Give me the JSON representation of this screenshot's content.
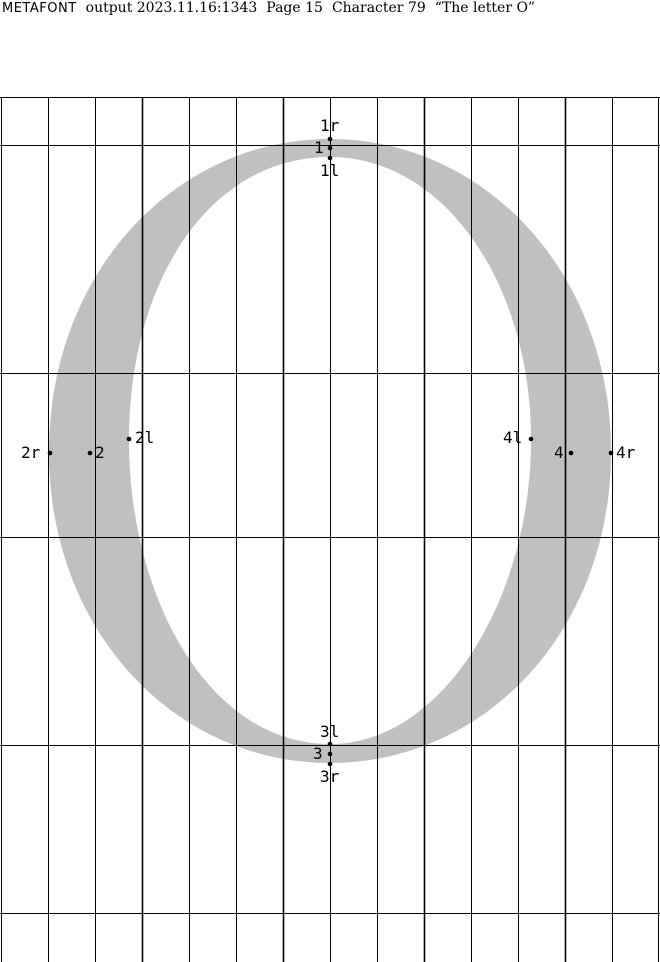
{
  "header": {
    "program": "METAFONT",
    "output_label": "output 2023.11.16:1343",
    "page": "Page 15",
    "character": "Character 79",
    "description": "“The letter O”"
  },
  "glyph": {
    "fill_color": "#c0c0c0",
    "grid_color": "#000000"
  },
  "points": {
    "p1r": "1r",
    "p1": "1",
    "p1l": "1l",
    "p2r": "2r",
    "p2": "2",
    "p2l": "2l",
    "p3l": "3l",
    "p3": "3",
    "p3r": "3r",
    "p4l": "4l",
    "p4": "4",
    "p4r": "4r"
  }
}
